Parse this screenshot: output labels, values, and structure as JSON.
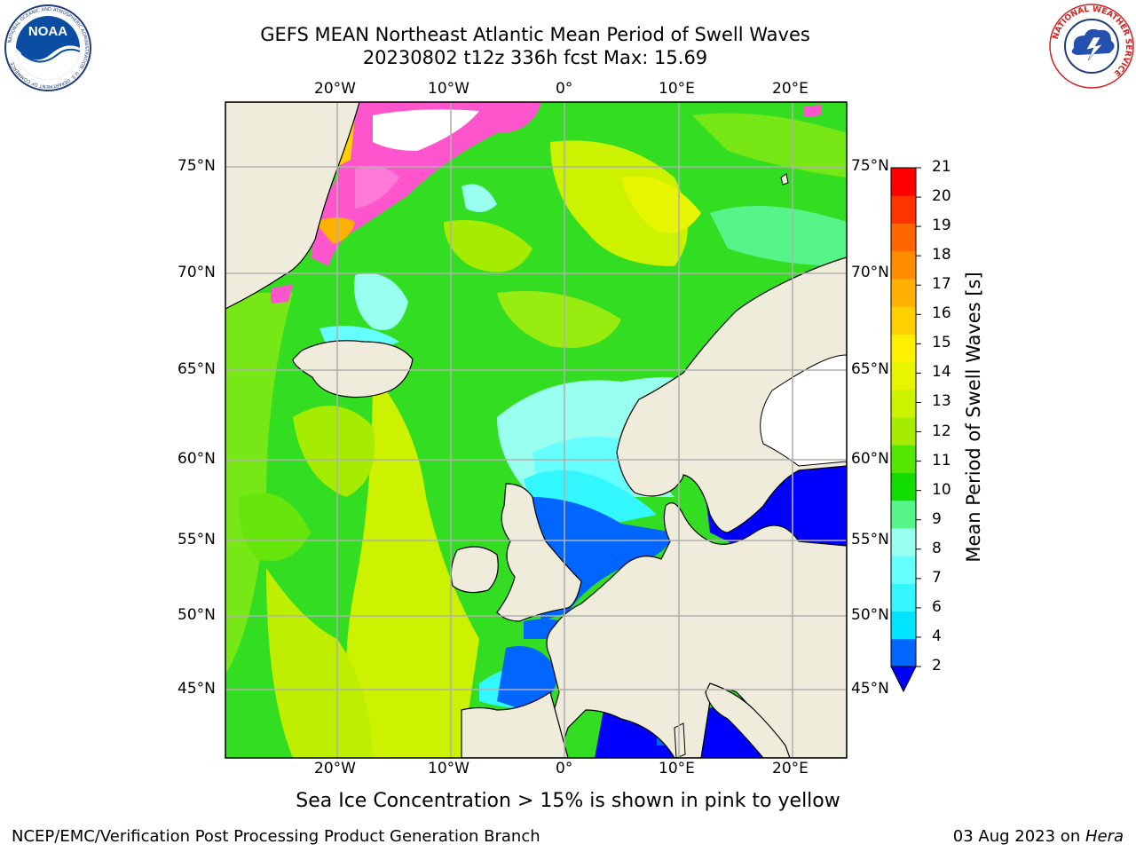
{
  "header": {
    "title_line1": "GEFS MEAN Northeast Atlantic Mean Period of Swell Waves",
    "title_line2": "20230802 t12z 336h fcst   Max: 15.69"
  },
  "logos": {
    "noaa": {
      "name": "noaa-logo",
      "text": "NOAA",
      "ring_text": "NATIONAL OCEANIC AND ATMOSPHERIC ADMINISTRATION · U.S. DEPARTMENT OF COMMERCE"
    },
    "nws": {
      "name": "nws-logo",
      "ring_text": "NATIONAL WEATHER SERVICE"
    }
  },
  "map": {
    "region": "Northeast Atlantic",
    "lon_labels": [
      "20°W",
      "10°W",
      "0°",
      "10°E",
      "20°E"
    ],
    "lat_labels": [
      "75°N",
      "70°N",
      "65°N",
      "60°N",
      "55°N",
      "50°N",
      "45°N"
    ],
    "land_color": "#efecdc",
    "grid_color": "#b0b0b0"
  },
  "colorbar": {
    "label": "Mean Period of Swell Waves [s]",
    "ticks": [
      "2",
      "4",
      "6",
      "7",
      "8",
      "9",
      "10",
      "11",
      "12",
      "13",
      "14",
      "15",
      "16",
      "17",
      "18",
      "19",
      "20",
      "21"
    ],
    "colors": [
      "#0066ff",
      "#00e5ff",
      "#33f7ff",
      "#66ffff",
      "#99ffee",
      "#55f58a",
      "#11dd00",
      "#55e600",
      "#a6ec00",
      "#ccf200",
      "#e8f500",
      "#fff000",
      "#ffd000",
      "#ffb000",
      "#ff8c00",
      "#ff6600",
      "#ff3300",
      "#ff0000"
    ],
    "under_color": "#0000ff"
  },
  "caption": "Sea Ice Concentration > 15% is shown in pink to yellow",
  "footer": {
    "left": "NCEP/EMC/Verification Post Processing Product Generation Branch",
    "date": "03 Aug 2023 on ",
    "machine": "Hera"
  }
}
